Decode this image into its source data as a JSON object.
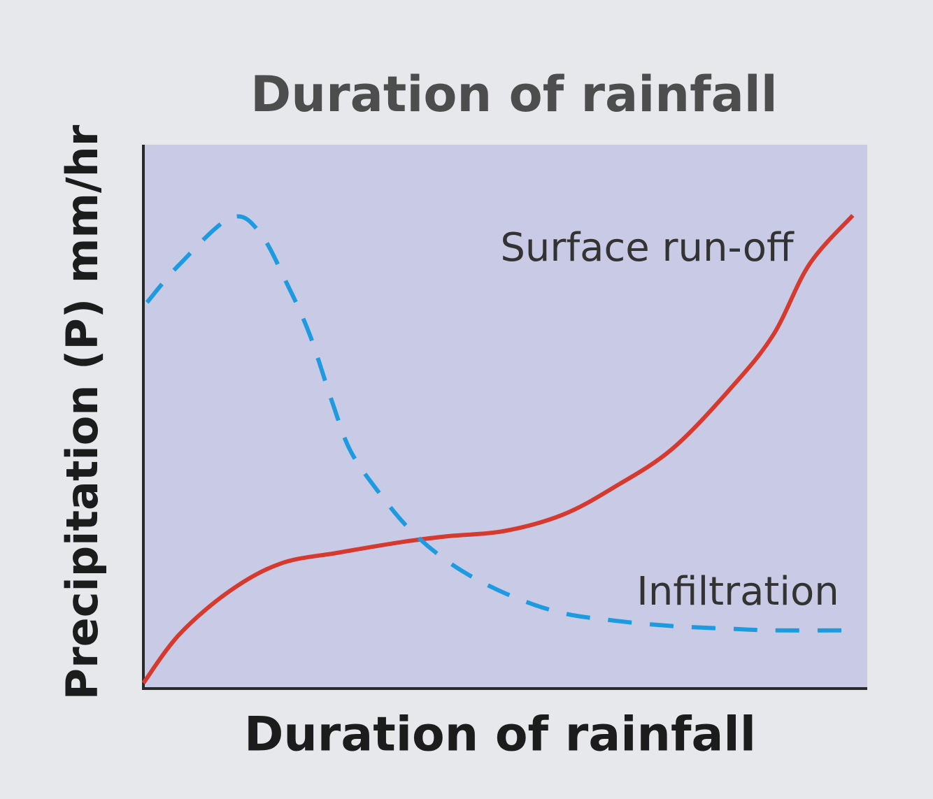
{
  "chart_data": {
    "type": "line",
    "title": "Duration of rainfall",
    "xlabel": "Duration of rainfall",
    "ylabel": "Precipitation (P) mm/hr",
    "xlim": [
      0,
      100
    ],
    "ylim": [
      0,
      100
    ],
    "series": [
      {
        "name": "Surface run-off",
        "color": "#d63a2f",
        "style": "solid",
        "x": [
          0,
          5,
          12,
          19,
          27,
          36,
          42,
          50,
          58,
          65,
          73,
          81,
          87,
          92,
          98
        ],
        "values": [
          1,
          10,
          18,
          23,
          25,
          27,
          28,
          29,
          32,
          37,
          44,
          55,
          65,
          78,
          87
        ]
      },
      {
        "name": "Infiltration",
        "color": "#1e9be0",
        "style": "dashed",
        "x": [
          0.5,
          5,
          12,
          16,
          20,
          23,
          26,
          28.5,
          32,
          37,
          43,
          50,
          57.5,
          65,
          73,
          81,
          87,
          97
        ],
        "values": [
          71,
          78,
          86.5,
          84,
          74,
          65,
          53,
          44,
          37,
          29,
          22.5,
          17.5,
          14,
          12.5,
          11.5,
          11,
          10.7,
          10.7
        ]
      }
    ]
  }
}
